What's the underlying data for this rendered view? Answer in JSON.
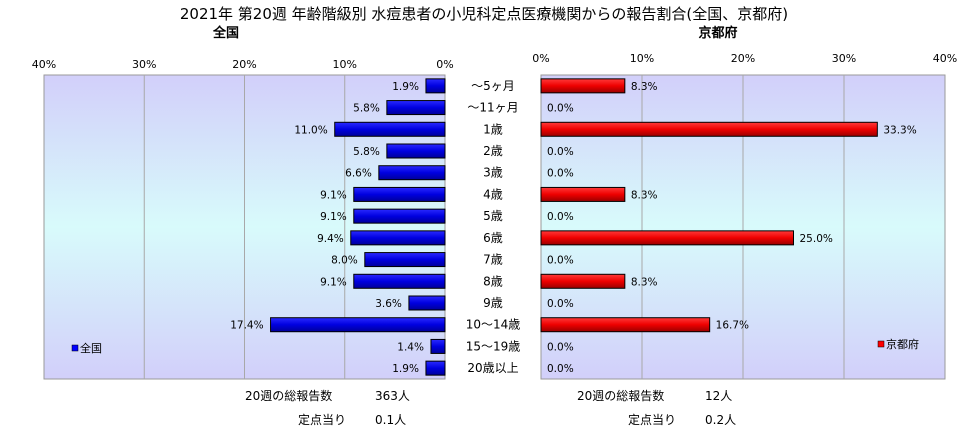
{
  "chart_data": {
    "type": "bar",
    "title": "2021年 第20週 年齢階級別 水痘患者の小児科定点医療機関からの報告割合(全国、京都府)",
    "categories": [
      "～5ヶ月",
      "～11ヶ月",
      "1歳",
      "2歳",
      "3歳",
      "4歳",
      "5歳",
      "6歳",
      "7歳",
      "8歳",
      "9歳",
      "10～14歳",
      "15～19歳",
      "20歳以上"
    ],
    "xlim": [
      0,
      40
    ],
    "ticks": [
      "0%",
      "10%",
      "20%",
      "30%",
      "40%"
    ],
    "left_ticks": [
      "40%",
      "30%",
      "20%",
      "10%",
      "0%"
    ],
    "grid": true,
    "series": [
      {
        "name": "全国",
        "subtitle": "全国",
        "color": "#0000ff",
        "legend": "left-bottom",
        "values": [
          1.9,
          5.8,
          11.0,
          5.8,
          6.6,
          9.1,
          9.1,
          9.4,
          8.0,
          9.1,
          3.6,
          17.4,
          1.4,
          1.9
        ],
        "value_labels": [
          "1.9%",
          "5.8%",
          "11.0%",
          "5.8%",
          "6.6%",
          "9.1%",
          "9.1%",
          "9.4%",
          "8.0%",
          "9.1%",
          "3.6%",
          "17.4%",
          "1.4%",
          "1.9%"
        ],
        "footer": [
          {
            "label": "20週の総報告数",
            "value": "363人"
          },
          {
            "label": "定点当り",
            "value": "0.1人"
          }
        ]
      },
      {
        "name": "京都府",
        "subtitle": "京都府",
        "color": "#ff0000",
        "legend": "right-bottom",
        "values": [
          8.3,
          0.0,
          33.3,
          0.0,
          0.0,
          8.3,
          0.0,
          25.0,
          0.0,
          8.3,
          0.0,
          16.7,
          0.0,
          0.0
        ],
        "value_labels": [
          "8.3%",
          "0.0%",
          "33.3%",
          "0.0%",
          "0.0%",
          "8.3%",
          "0.0%",
          "25.0%",
          "0.0%",
          "8.3%",
          "0.0%",
          "16.7%",
          "0.0%",
          "0.0%"
        ],
        "footer": [
          {
            "label": "20週の総報告数",
            "value": "12人"
          },
          {
            "label": "定点当り",
            "value": "0.2人"
          }
        ]
      }
    ]
  }
}
